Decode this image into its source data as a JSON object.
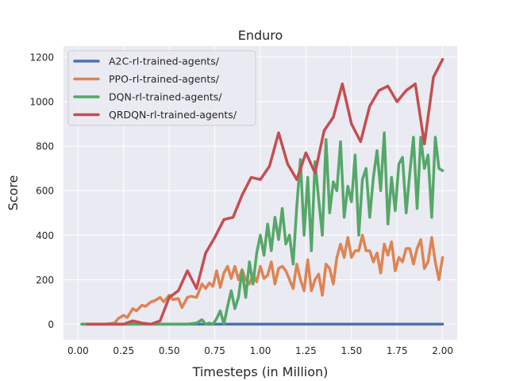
{
  "chart_data": {
    "type": "line",
    "title": "Enduro",
    "xlabel": "Timesteps (in Million)",
    "ylabel": "Score",
    "xlim": [
      -0.08,
      2.08
    ],
    "ylim": [
      -70,
      1250
    ],
    "xticks": [
      0.0,
      0.25,
      0.5,
      0.75,
      1.0,
      1.25,
      1.5,
      1.75,
      2.0
    ],
    "xtick_labels": [
      "0.00",
      "0.25",
      "0.50",
      "0.75",
      "1.00",
      "1.25",
      "1.50",
      "1.75",
      "2.00"
    ],
    "yticks": [
      0,
      200,
      400,
      600,
      800,
      1000,
      1200
    ],
    "ytick_labels": [
      "0",
      "200",
      "400",
      "600",
      "800",
      "1000",
      "1200"
    ],
    "grid": true,
    "background": "#eaeaf2",
    "legend_position": "top-left",
    "series": [
      {
        "name": "A2C-rl-trained-agents/",
        "color": "#4c72b0",
        "x": [
          0.02,
          0.2,
          0.4,
          0.6,
          0.8,
          1.0,
          1.2,
          1.4,
          1.6,
          1.8,
          2.0
        ],
        "y": [
          0,
          0,
          0,
          0,
          0,
          0,
          0,
          0,
          0,
          0,
          0
        ]
      },
      {
        "name": "PPO-rl-trained-agents/",
        "color": "#dd8452",
        "x": [
          0.05,
          0.1,
          0.15,
          0.2,
          0.22,
          0.25,
          0.27,
          0.3,
          0.32,
          0.35,
          0.37,
          0.4,
          0.42,
          0.45,
          0.47,
          0.5,
          0.52,
          0.55,
          0.57,
          0.6,
          0.62,
          0.65,
          0.68,
          0.7,
          0.72,
          0.74,
          0.76,
          0.78,
          0.8,
          0.82,
          0.84,
          0.86,
          0.88,
          0.9,
          0.92,
          0.94,
          0.96,
          0.98,
          1.0,
          1.02,
          1.04,
          1.06,
          1.08,
          1.1,
          1.12,
          1.14,
          1.16,
          1.18,
          1.2,
          1.22,
          1.24,
          1.26,
          1.28,
          1.3,
          1.32,
          1.34,
          1.36,
          1.38,
          1.4,
          1.42,
          1.44,
          1.46,
          1.48,
          1.5,
          1.52,
          1.54,
          1.56,
          1.58,
          1.6,
          1.62,
          1.64,
          1.66,
          1.68,
          1.7,
          1.72,
          1.74,
          1.76,
          1.78,
          1.8,
          1.82,
          1.84,
          1.86,
          1.88,
          1.9,
          1.92,
          1.94,
          1.96,
          1.98,
          2.0
        ],
        "y": [
          0,
          0,
          0,
          5,
          25,
          40,
          30,
          70,
          60,
          85,
          80,
          100,
          105,
          120,
          100,
          130,
          110,
          115,
          75,
          120,
          125,
          120,
          180,
          160,
          185,
          170,
          240,
          165,
          230,
          260,
          205,
          260,
          200,
          245,
          200,
          180,
          225,
          190,
          260,
          205,
          220,
          280,
          180,
          250,
          260,
          240,
          200,
          160,
          270,
          200,
          150,
          290,
          150,
          200,
          225,
          130,
          270,
          250,
          180,
          300,
          360,
          300,
          390,
          300,
          330,
          330,
          400,
          330,
          330,
          280,
          320,
          230,
          360,
          310,
          370,
          240,
          300,
          280,
          340,
          340,
          270,
          340,
          380,
          250,
          280,
          390,
          280,
          200,
          300
        ]
      },
      {
        "name": "DQN-rl-trained-agents/",
        "color": "#55a868",
        "x": [
          0.02,
          0.2,
          0.4,
          0.6,
          0.65,
          0.68,
          0.7,
          0.72,
          0.74,
          0.76,
          0.78,
          0.8,
          0.82,
          0.84,
          0.86,
          0.88,
          0.9,
          0.92,
          0.94,
          0.96,
          0.98,
          1.0,
          1.02,
          1.04,
          1.06,
          1.08,
          1.1,
          1.12,
          1.14,
          1.16,
          1.18,
          1.2,
          1.22,
          1.24,
          1.26,
          1.28,
          1.3,
          1.32,
          1.34,
          1.36,
          1.38,
          1.4,
          1.42,
          1.44,
          1.46,
          1.48,
          1.5,
          1.52,
          1.54,
          1.56,
          1.58,
          1.6,
          1.62,
          1.64,
          1.66,
          1.68,
          1.7,
          1.72,
          1.74,
          1.76,
          1.78,
          1.8,
          1.82,
          1.84,
          1.86,
          1.88,
          1.9,
          1.92,
          1.94,
          1.96,
          1.98,
          2.0
        ],
        "y": [
          0,
          0,
          0,
          0,
          5,
          20,
          0,
          5,
          0,
          25,
          60,
          0,
          80,
          150,
          70,
          120,
          240,
          120,
          280,
          180,
          320,
          400,
          310,
          450,
          330,
          480,
          380,
          520,
          360,
          400,
          270,
          530,
          740,
          400,
          660,
          330,
          730,
          560,
          400,
          830,
          500,
          640,
          600,
          820,
          480,
          620,
          550,
          760,
          400,
          650,
          700,
          480,
          660,
          780,
          600,
          860,
          450,
          660,
          510,
          720,
          750,
          500,
          680,
          840,
          520,
          840,
          700,
          760,
          480,
          840,
          700,
          690
        ]
      },
      {
        "name": "QRDQN-rl-trained-agents/",
        "color": "#c44e52",
        "x": [
          0.05,
          0.1,
          0.15,
          0.2,
          0.25,
          0.3,
          0.35,
          0.4,
          0.45,
          0.5,
          0.55,
          0.6,
          0.65,
          0.7,
          0.75,
          0.8,
          0.85,
          0.9,
          0.95,
          1.0,
          1.05,
          1.1,
          1.15,
          1.2,
          1.25,
          1.3,
          1.35,
          1.4,
          1.45,
          1.5,
          1.55,
          1.6,
          1.65,
          1.7,
          1.75,
          1.8,
          1.85,
          1.9,
          1.95,
          2.0
        ],
        "y": [
          0,
          0,
          0,
          0,
          0,
          15,
          5,
          0,
          15,
          120,
          150,
          240,
          160,
          320,
          390,
          470,
          480,
          580,
          660,
          650,
          710,
          860,
          720,
          650,
          770,
          680,
          870,
          930,
          1080,
          900,
          820,
          980,
          1050,
          1070,
          1000,
          1050,
          1080,
          810,
          1110,
          1190
        ]
      }
    ]
  }
}
